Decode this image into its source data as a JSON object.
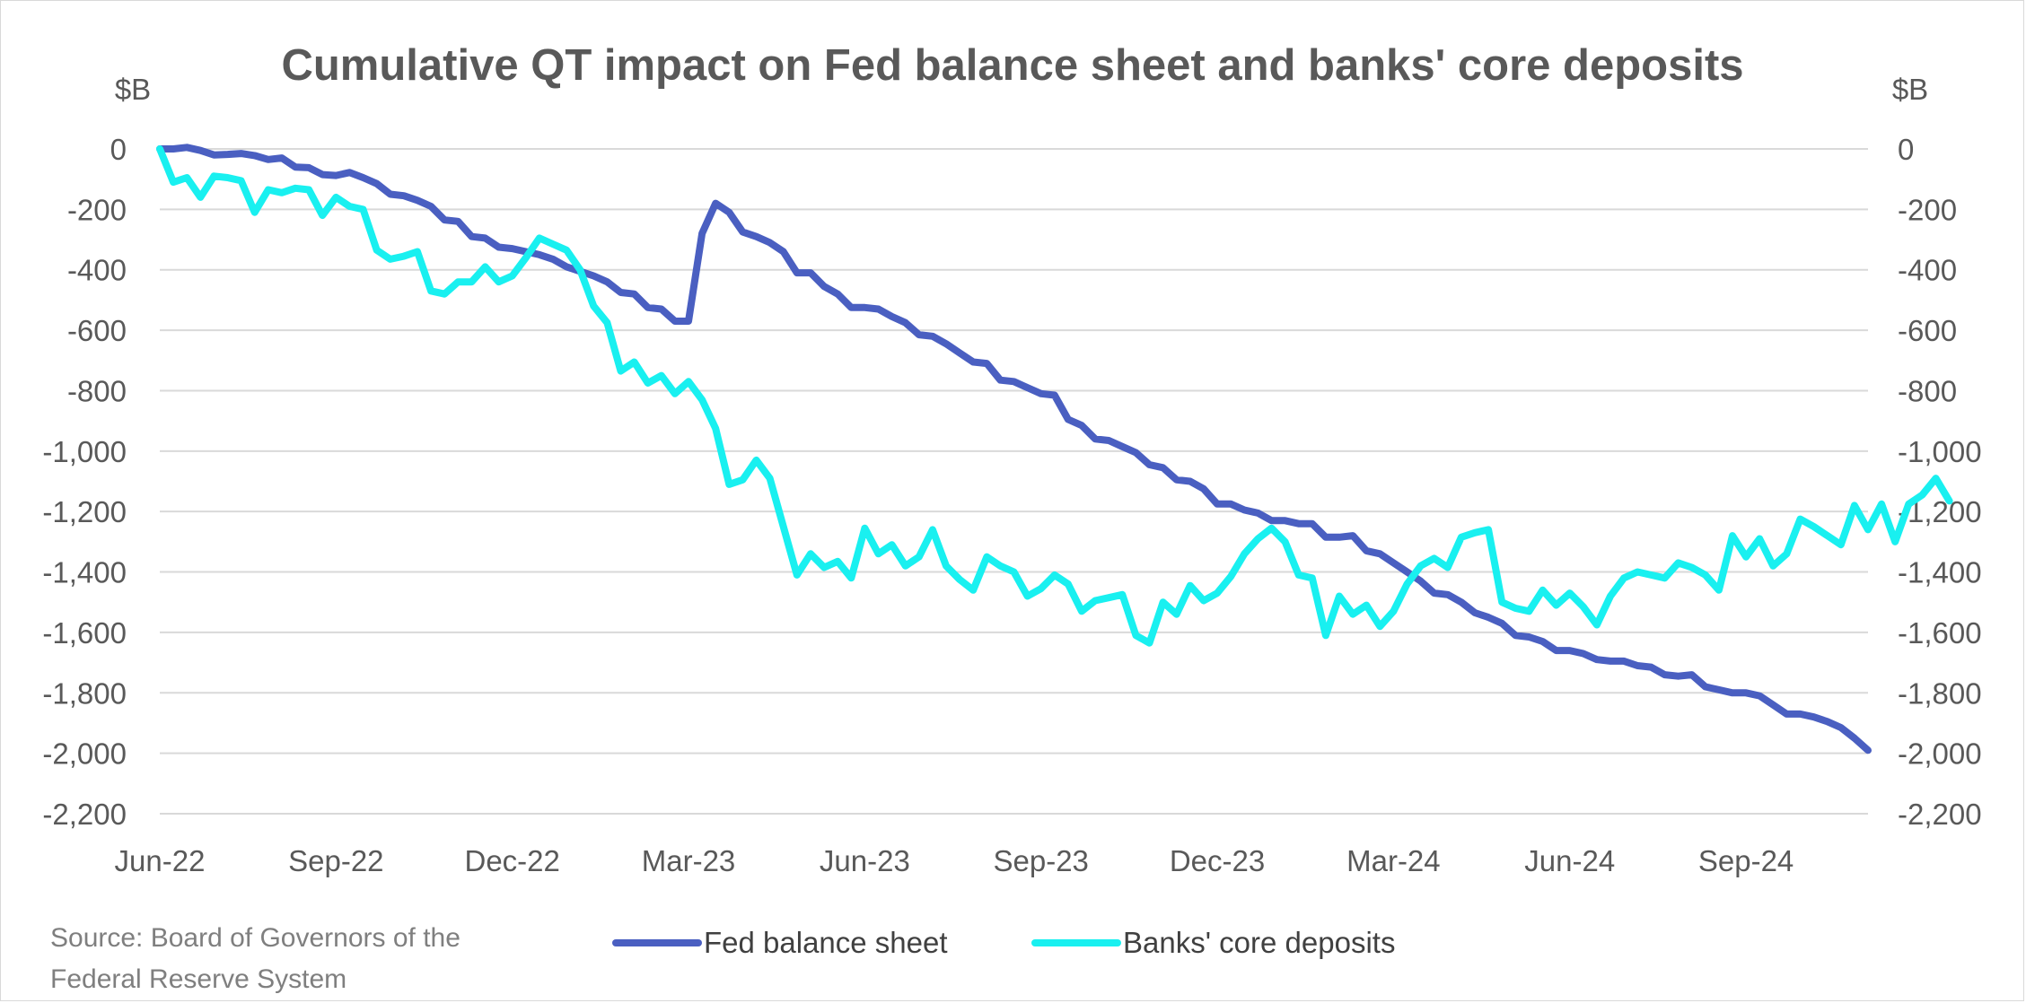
{
  "chart_data": {
    "type": "line",
    "title": "Cumulative QT impact on Fed balance sheet and banks' core deposits",
    "ylabel_left": "$B",
    "ylabel_right": "$B",
    "ylim": [
      -2200,
      0
    ],
    "ytick_step": 200,
    "ytick_labels": [
      "0",
      "-200",
      "-400",
      "-600",
      "-800",
      "-1,000",
      "-1,200",
      "-1,400",
      "-1,600",
      "-1,800",
      "-2,000",
      "-2,200"
    ],
    "xtick_labels": [
      "Jun-22",
      "Sep-22",
      "Dec-22",
      "Mar-23",
      "Jun-23",
      "Sep-23",
      "Dec-23",
      "Mar-24",
      "Jun-24",
      "Sep-24"
    ],
    "x_start": "Jun-22",
    "x_period": "weekly",
    "grid": "horizontal",
    "legend_position": "bottom",
    "source": [
      "Source: Board of Governors of the",
      "Federal Reserve System"
    ],
    "series": [
      {
        "name": "Fed balance sheet",
        "color": "#4a5fc1",
        "values": [
          0,
          0,
          5,
          -5,
          -20,
          -18,
          -15,
          -22,
          -35,
          -30,
          -60,
          -62,
          -85,
          -88,
          -78,
          -95,
          -115,
          -150,
          -155,
          -170,
          -190,
          -235,
          -240,
          -290,
          -295,
          -325,
          -330,
          -340,
          -350,
          -365,
          -390,
          -405,
          -420,
          -440,
          -475,
          -480,
          -525,
          -530,
          -570,
          -570,
          -280,
          -180,
          -210,
          -275,
          -290,
          -310,
          -340,
          -410,
          -410,
          -455,
          -480,
          -525,
          -525,
          -530,
          -555,
          -575,
          -615,
          -620,
          -645,
          -675,
          -705,
          -710,
          -765,
          -770,
          -790,
          -810,
          -815,
          -895,
          -915,
          -960,
          -965,
          -985,
          -1005,
          -1045,
          -1055,
          -1095,
          -1100,
          -1125,
          -1175,
          -1175,
          -1195,
          -1205,
          -1230,
          -1230,
          -1240,
          -1240,
          -1285,
          -1285,
          -1280,
          -1330,
          -1340,
          -1370,
          -1400,
          -1430,
          -1470,
          -1475,
          -1500,
          -1535,
          -1550,
          -1570,
          -1610,
          -1615,
          -1630,
          -1660,
          -1660,
          -1670,
          -1690,
          -1695,
          -1695,
          -1710,
          -1715,
          -1740,
          -1745,
          -1740,
          -1780,
          -1790,
          -1800,
          -1800,
          -1810,
          -1840,
          -1870,
          -1870,
          -1880,
          -1895,
          -1915,
          -1950,
          -1990
        ]
      },
      {
        "name": "Banks' core deposits",
        "color": "#19f0f0",
        "values": [
          0,
          -110,
          -95,
          -160,
          -90,
          -95,
          -105,
          -210,
          -135,
          -145,
          -130,
          -135,
          -220,
          -160,
          -190,
          -200,
          -335,
          -365,
          -355,
          -340,
          -470,
          -480,
          -440,
          -440,
          -390,
          -440,
          -420,
          -360,
          -295,
          -315,
          -335,
          -400,
          -520,
          -575,
          -735,
          -705,
          -775,
          -750,
          -810,
          -770,
          -830,
          -925,
          -1110,
          -1095,
          -1030,
          -1090,
          -1250,
          -1410,
          -1340,
          -1385,
          -1365,
          -1420,
          -1255,
          -1340,
          -1310,
          -1380,
          -1350,
          -1260,
          -1380,
          -1425,
          -1460,
          -1350,
          -1380,
          -1400,
          -1480,
          -1455,
          -1410,
          -1440,
          -1530,
          -1495,
          -1485,
          -1475,
          -1610,
          -1635,
          -1500,
          -1540,
          -1445,
          -1495,
          -1470,
          -1415,
          -1340,
          -1290,
          -1255,
          -1300,
          -1410,
          -1420,
          -1610,
          -1480,
          -1540,
          -1510,
          -1580,
          -1530,
          -1440,
          -1380,
          -1355,
          -1385,
          -1285,
          -1270,
          -1260,
          -1500,
          -1520,
          -1530,
          -1460,
          -1510,
          -1470,
          -1515,
          -1575,
          -1480,
          -1420,
          -1400,
          -1410,
          -1420,
          -1370,
          -1385,
          -1410,
          -1460,
          -1280,
          -1350,
          -1290,
          -1380,
          -1340,
          -1225,
          -1250,
          -1280,
          -1310,
          -1180,
          -1260,
          -1175,
          -1300,
          -1175,
          -1145,
          -1090,
          -1165
        ]
      }
    ]
  }
}
